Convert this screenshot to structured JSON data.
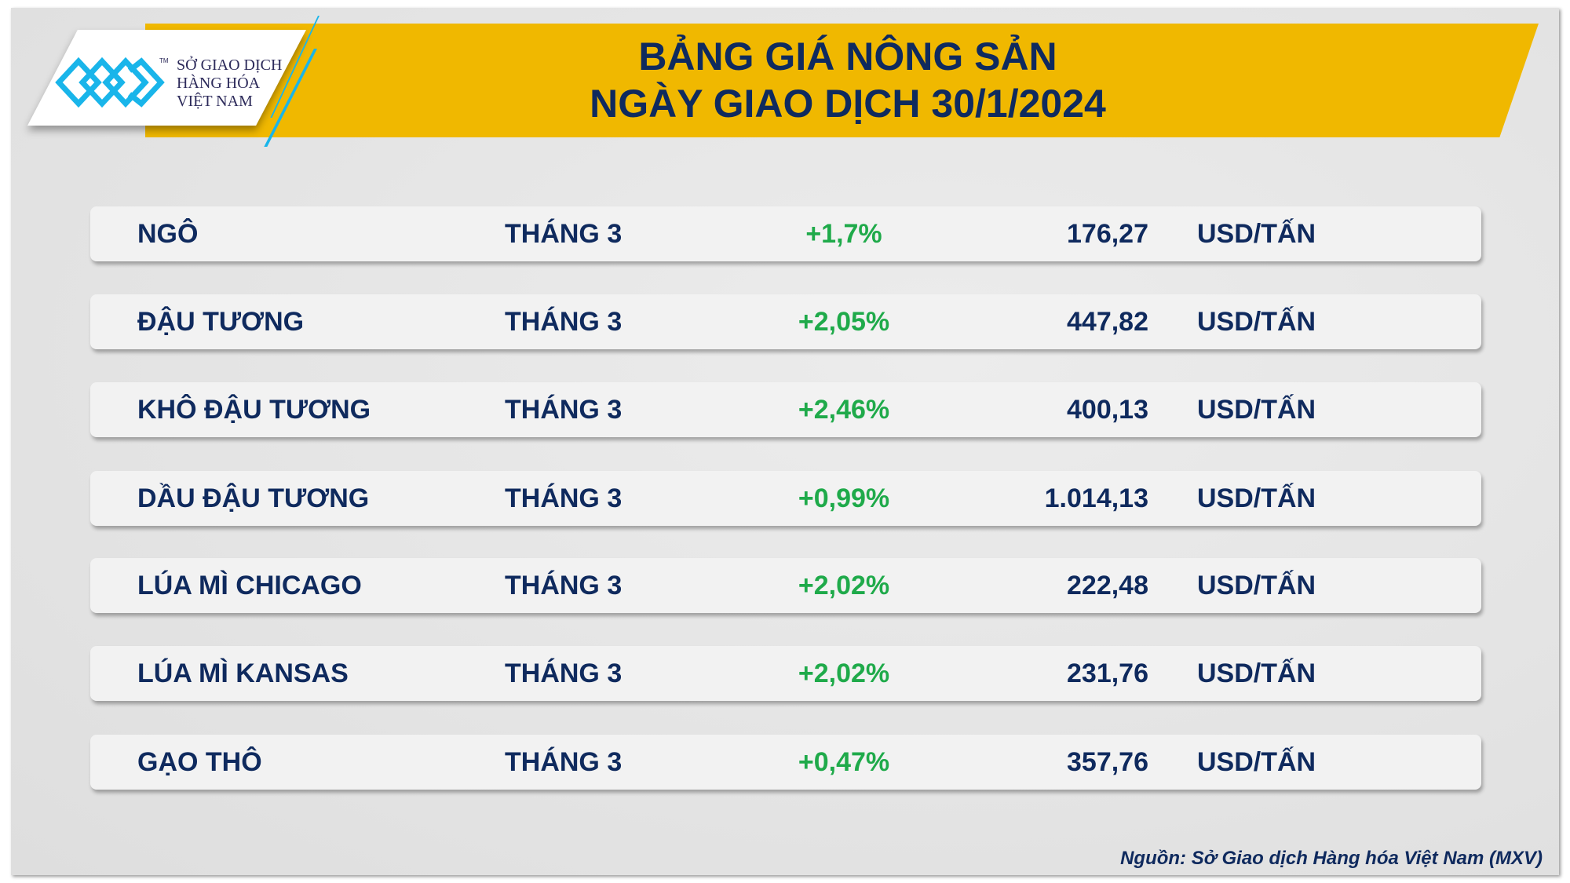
{
  "logo": {
    "line1": "SỞ GIAO DỊCH",
    "line2": "HÀNG HÓA",
    "line3": "VIỆT NAM",
    "tm": "TM"
  },
  "header": {
    "title_line1": "BẢNG GIÁ NÔNG SẢN",
    "title_line2": "NGÀY GIAO DỊCH 30/1/2024"
  },
  "colors": {
    "banner": "#f0b800",
    "text": "#0f2a5e",
    "positive": "#1faa4a",
    "logo_blue": "#19b5ea"
  },
  "rows": [
    {
      "name": "NGÔ",
      "month": "THÁNG 3",
      "change": "+1,7%",
      "price": "176,27",
      "unit": "USD/TẤN"
    },
    {
      "name": "ĐẬU TƯƠNG",
      "month": "THÁNG 3",
      "change": "+2,05%",
      "price": "447,82",
      "unit": "USD/TẤN"
    },
    {
      "name": "KHÔ ĐẬU TƯƠNG",
      "month": "THÁNG 3",
      "change": "+2,46%",
      "price": "400,13",
      "unit": "USD/TẤN"
    },
    {
      "name": "DẦU ĐẬU TƯƠNG",
      "month": "THÁNG 3",
      "change": "+0,99%",
      "price": "1.014,13",
      "unit": "USD/TẤN"
    },
    {
      "name": "LÚA MÌ CHICAGO",
      "month": "THÁNG 3",
      "change": "+2,02%",
      "price": "222,48",
      "unit": "USD/TẤN"
    },
    {
      "name": "LÚA MÌ KANSAS",
      "month": "THÁNG 3",
      "change": "+2,02%",
      "price": "231,76",
      "unit": "USD/TẤN"
    },
    {
      "name": "GẠO THÔ",
      "month": "THÁNG 3",
      "change": "+0,47%",
      "price": "357,76",
      "unit": "USD/TẤN"
    }
  ],
  "source": "Nguồn: Sở Giao dịch Hàng hóa Việt Nam (MXV)"
}
